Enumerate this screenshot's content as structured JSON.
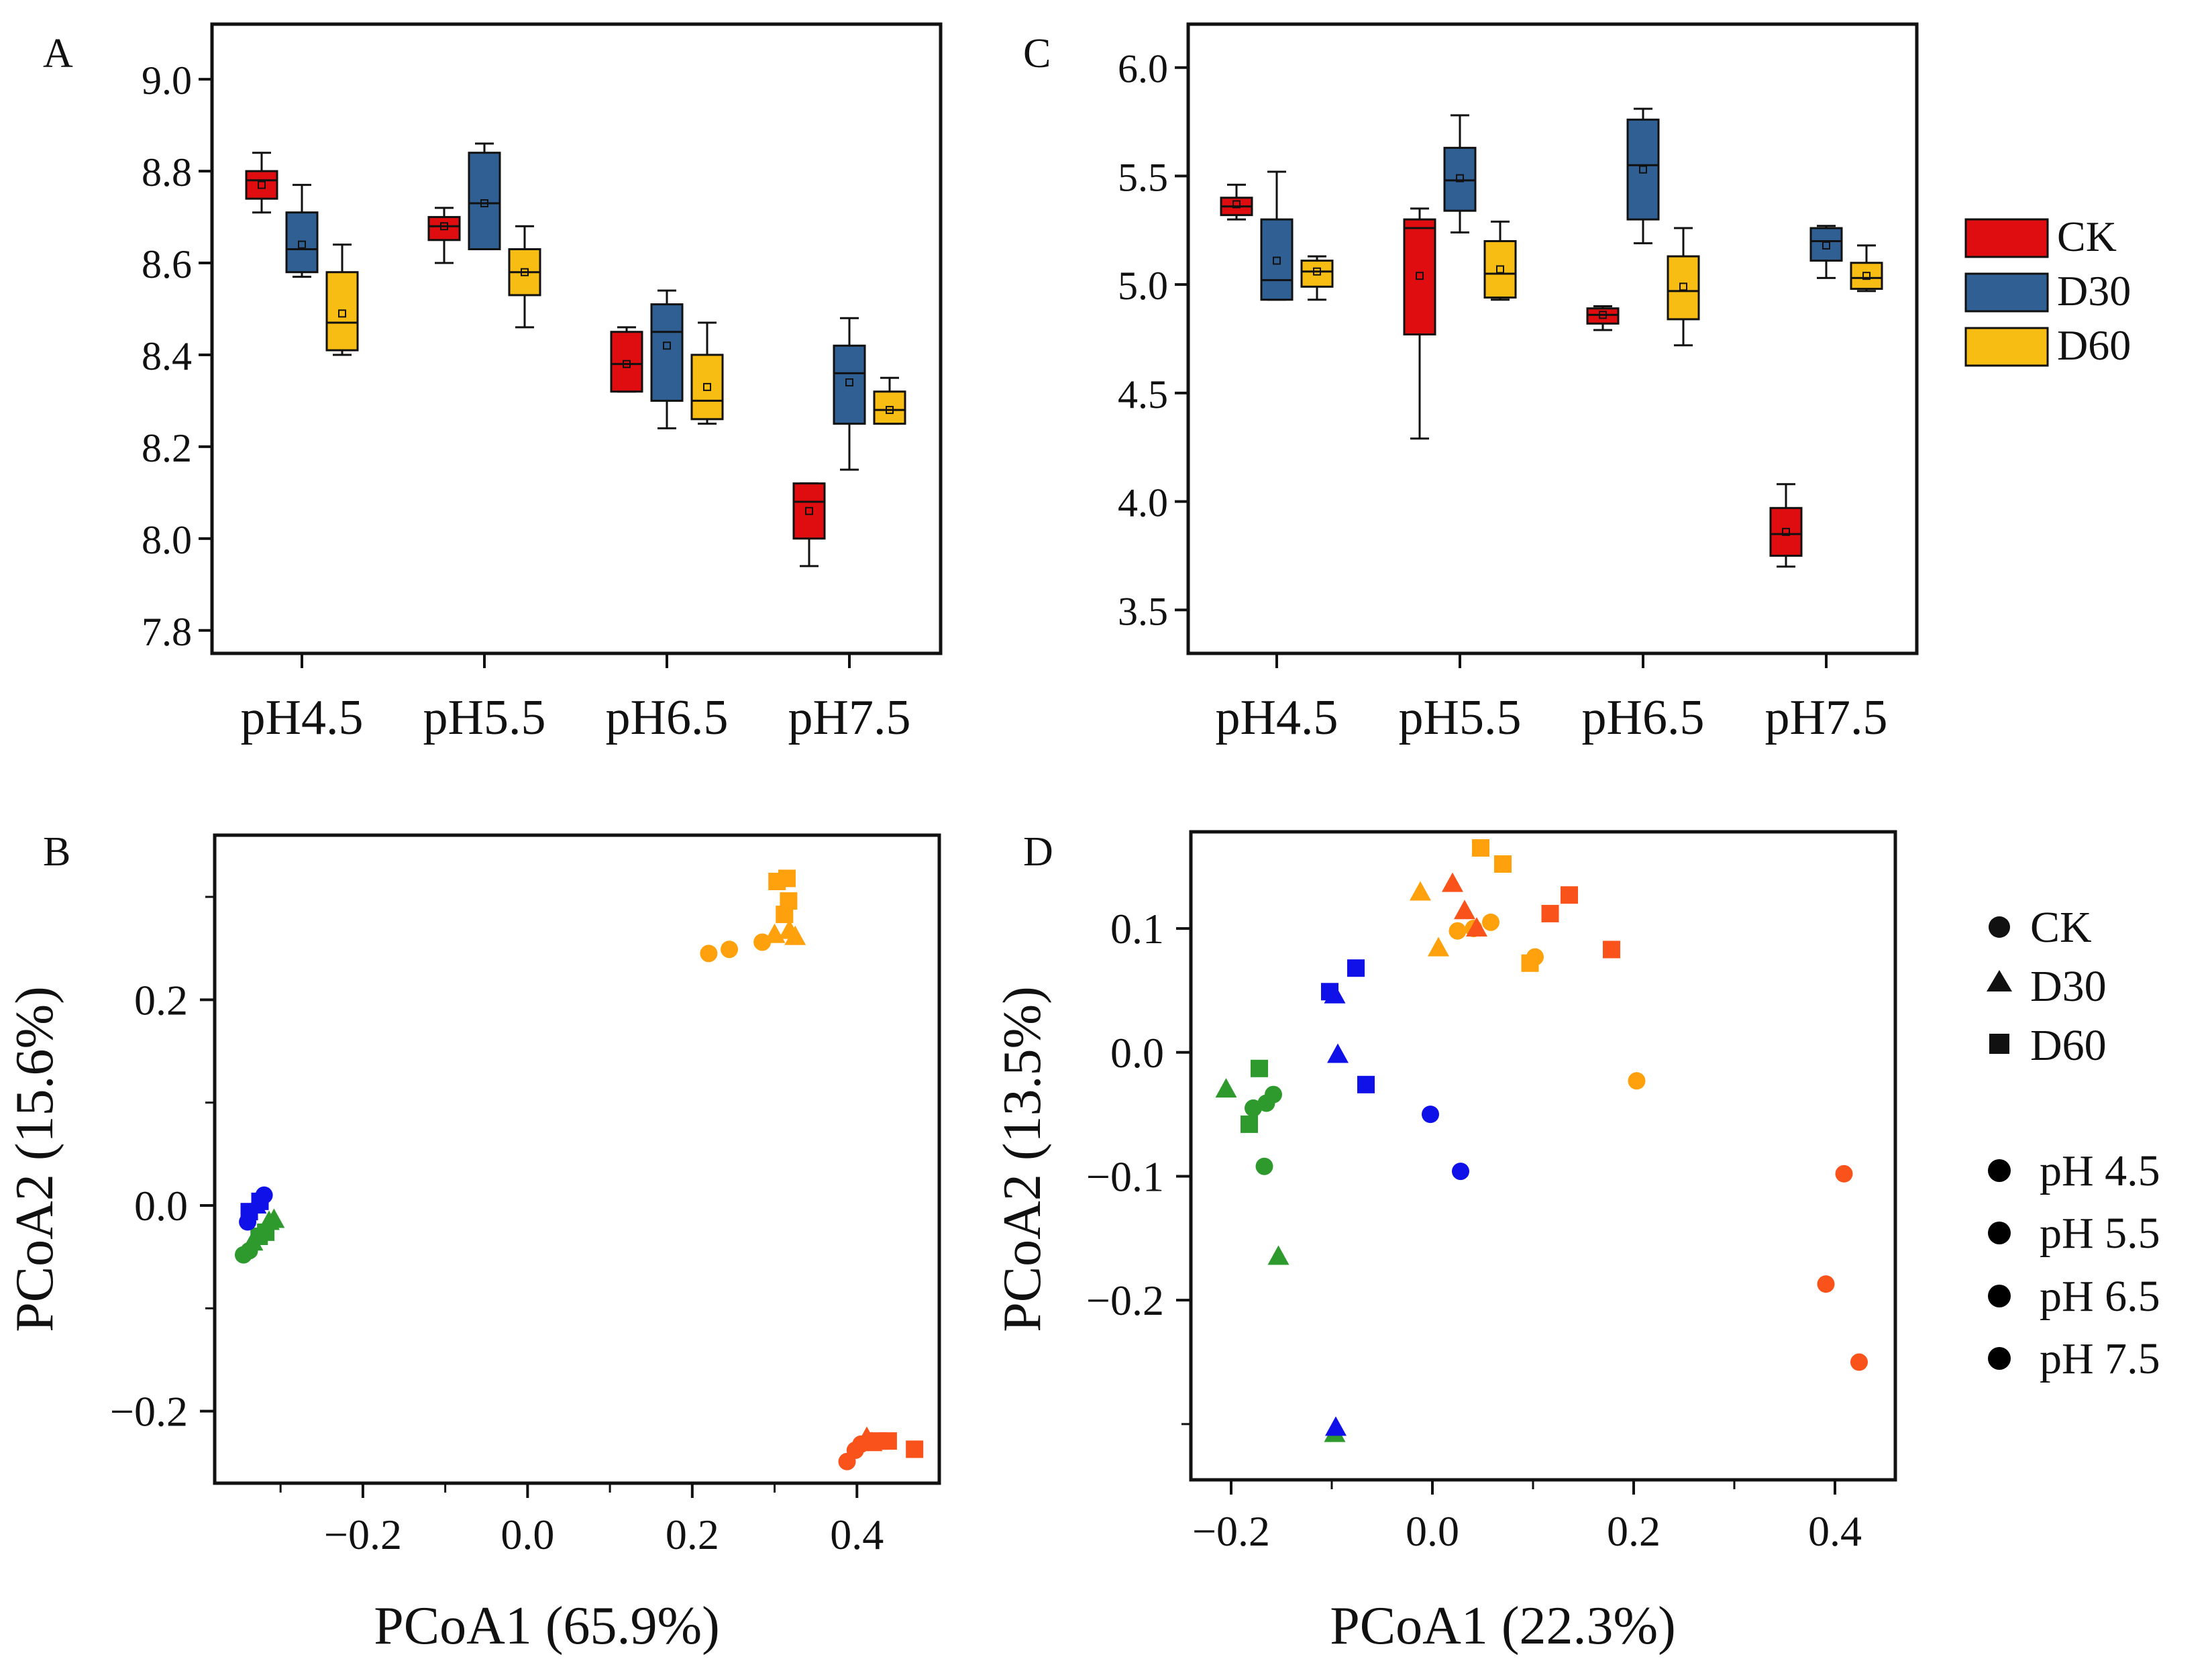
{
  "colors": {
    "CK": "#e00d10",
    "D30": "#2f5f93",
    "D60": "#f8bd12",
    "pH 4.5": "#2e9a2e",
    "pH 5.5": "#1010e8",
    "pH 6.5": "#ffa10d",
    "pH 7.5": "#f9521a"
  },
  "chart_data": [
    {
      "id": "A",
      "panel_label": "A",
      "type": "box",
      "categories": [
        "pH4.5",
        "pH5.5",
        "pH6.5",
        "pH7.5"
      ],
      "groups": [
        "CK",
        "D30",
        "D60"
      ],
      "ylim": [
        7.75,
        9.12
      ],
      "yticks": [
        "7.8",
        "8.0",
        "8.2",
        "8.4",
        "8.6",
        "8.8",
        "9.0"
      ],
      "series": [
        {
          "name": "CK",
          "boxes": [
            {
              "min": 8.71,
              "q1": 8.74,
              "median": 8.78,
              "q3": 8.8,
              "max": 8.84,
              "mean": 8.77
            },
            {
              "min": 8.6,
              "q1": 8.65,
              "median": 8.68,
              "q3": 8.7,
              "max": 8.72,
              "mean": 8.68
            },
            {
              "min": 8.32,
              "q1": 8.32,
              "median": 8.38,
              "q3": 8.45,
              "max": 8.46,
              "mean": 8.38
            },
            {
              "min": 7.94,
              "q1": 8.0,
              "median": 8.08,
              "q3": 8.12,
              "max": 8.12,
              "mean": 8.06
            }
          ]
        },
        {
          "name": "D30",
          "boxes": [
            {
              "min": 8.57,
              "q1": 8.58,
              "median": 8.63,
              "q3": 8.71,
              "max": 8.77,
              "mean": 8.64
            },
            {
              "min": 8.63,
              "q1": 8.63,
              "median": 8.73,
              "q3": 8.84,
              "max": 8.86,
              "mean": 8.73
            },
            {
              "min": 8.24,
              "q1": 8.3,
              "median": 8.45,
              "q3": 8.51,
              "max": 8.54,
              "mean": 8.42
            },
            {
              "min": 8.15,
              "q1": 8.25,
              "median": 8.36,
              "q3": 8.42,
              "max": 8.48,
              "mean": 8.34
            }
          ]
        },
        {
          "name": "D60",
          "boxes": [
            {
              "min": 8.4,
              "q1": 8.41,
              "median": 8.47,
              "q3": 8.58,
              "max": 8.64,
              "mean": 8.49
            },
            {
              "min": 8.46,
              "q1": 8.53,
              "median": 8.58,
              "q3": 8.63,
              "max": 8.68,
              "mean": 8.58
            },
            {
              "min": 8.25,
              "q1": 8.26,
              "median": 8.3,
              "q3": 8.4,
              "max": 8.47,
              "mean": 8.33
            },
            {
              "min": 8.25,
              "q1": 8.25,
              "median": 8.28,
              "q3": 8.32,
              "max": 8.35,
              "mean": 8.28
            }
          ]
        }
      ]
    },
    {
      "id": "C",
      "panel_label": "C",
      "type": "box",
      "categories": [
        "pH4.5",
        "pH5.5",
        "pH6.5",
        "pH7.5"
      ],
      "groups": [
        "CK",
        "D30",
        "D60"
      ],
      "ylim": [
        3.3,
        6.2
      ],
      "yticks": [
        "3.5",
        "4.0",
        "4.5",
        "5.0",
        "5.5",
        "6.0"
      ],
      "series": [
        {
          "name": "CK",
          "boxes": [
            {
              "min": 5.3,
              "q1": 5.32,
              "median": 5.36,
              "q3": 5.4,
              "max": 5.46,
              "mean": 5.37
            },
            {
              "min": 4.29,
              "q1": 4.77,
              "median": 5.26,
              "q3": 5.3,
              "max": 5.35,
              "mean": 5.04
            },
            {
              "min": 4.79,
              "q1": 4.82,
              "median": 4.86,
              "q3": 4.89,
              "max": 4.9,
              "mean": 4.86
            },
            {
              "min": 3.7,
              "q1": 3.75,
              "median": 3.85,
              "q3": 3.97,
              "max": 4.08,
              "mean": 3.86
            }
          ]
        },
        {
          "name": "D30",
          "boxes": [
            {
              "min": 4.93,
              "q1": 4.93,
              "median": 5.02,
              "q3": 5.3,
              "max": 5.52,
              "mean": 5.11
            },
            {
              "min": 5.24,
              "q1": 5.34,
              "median": 5.48,
              "q3": 5.63,
              "max": 5.78,
              "mean": 5.49
            },
            {
              "min": 5.19,
              "q1": 5.3,
              "median": 5.55,
              "q3": 5.76,
              "max": 5.81,
              "mean": 5.53
            },
            {
              "min": 5.03,
              "q1": 5.11,
              "median": 5.2,
              "q3": 5.26,
              "max": 5.27,
              "mean": 5.18
            }
          ]
        },
        {
          "name": "D60",
          "boxes": [
            {
              "min": 4.93,
              "q1": 4.99,
              "median": 5.06,
              "q3": 5.11,
              "max": 5.13,
              "mean": 5.06
            },
            {
              "min": 4.93,
              "q1": 4.94,
              "median": 5.05,
              "q3": 5.2,
              "max": 5.29,
              "mean": 5.07
            },
            {
              "min": 4.72,
              "q1": 4.84,
              "median": 4.97,
              "q3": 5.13,
              "max": 5.26,
              "mean": 4.99
            },
            {
              "min": 4.97,
              "q1": 4.98,
              "median": 5.03,
              "q3": 5.1,
              "max": 5.18,
              "mean": 5.04
            }
          ]
        }
      ]
    },
    {
      "id": "B",
      "panel_label": "B",
      "type": "scatter",
      "xlabel": "PCoA1 (65.9%)",
      "ylabel": "PCoA2 (15.6%)",
      "xlim": [
        -0.38,
        0.5
      ],
      "ylim": [
        -0.27,
        0.36
      ],
      "xticks": [
        "-0.2",
        "0.0",
        "0.2",
        "0.4"
      ],
      "xtick_values": [
        -0.2,
        0.0,
        0.2,
        0.4
      ],
      "xminor": [
        -0.3,
        -0.1,
        0.1,
        0.3
      ],
      "yticks": [
        "-0.2",
        "0.0",
        "0.2"
      ],
      "ytick_values": [
        -0.2,
        0.0,
        0.2
      ],
      "yminor": [
        -0.1,
        0.1,
        0.3
      ],
      "points": [
        {
          "x": -0.345,
          "y": -0.048,
          "shape": "circle",
          "group": "pH 4.5"
        },
        {
          "x": -0.338,
          "y": -0.044,
          "shape": "circle",
          "group": "pH 4.5"
        },
        {
          "x": -0.334,
          "y": -0.036,
          "shape": "triangle",
          "group": "pH 4.5"
        },
        {
          "x": -0.326,
          "y": -0.03,
          "shape": "square",
          "group": "pH 4.5"
        },
        {
          "x": -0.318,
          "y": -0.026,
          "shape": "square",
          "group": "pH 4.5"
        },
        {
          "x": -0.314,
          "y": -0.016,
          "shape": "triangle",
          "group": "pH 4.5"
        },
        {
          "x": -0.308,
          "y": -0.014,
          "shape": "triangle",
          "group": "pH 4.5"
        },
        {
          "x": -0.34,
          "y": -0.016,
          "shape": "circle",
          "group": "pH 5.5"
        },
        {
          "x": -0.338,
          "y": -0.006,
          "shape": "square",
          "group": "pH 5.5"
        },
        {
          "x": -0.33,
          "y": 0.0,
          "shape": "triangle",
          "group": "pH 5.5"
        },
        {
          "x": -0.325,
          "y": 0.004,
          "shape": "square",
          "group": "pH 5.5"
        },
        {
          "x": -0.32,
          "y": 0.01,
          "shape": "circle",
          "group": "pH 5.5"
        },
        {
          "x": 0.22,
          "y": 0.245,
          "shape": "circle",
          "group": "pH 6.5"
        },
        {
          "x": 0.245,
          "y": 0.249,
          "shape": "circle",
          "group": "pH 6.5"
        },
        {
          "x": 0.285,
          "y": 0.256,
          "shape": "circle",
          "group": "pH 6.5"
        },
        {
          "x": 0.3,
          "y": 0.263,
          "shape": "triangle",
          "group": "pH 6.5"
        },
        {
          "x": 0.318,
          "y": 0.267,
          "shape": "triangle",
          "group": "pH 6.5"
        },
        {
          "x": 0.325,
          "y": 0.261,
          "shape": "triangle",
          "group": "pH 6.5"
        },
        {
          "x": 0.312,
          "y": 0.283,
          "shape": "square",
          "group": "pH 6.5"
        },
        {
          "x": 0.317,
          "y": 0.296,
          "shape": "square",
          "group": "pH 6.5"
        },
        {
          "x": 0.303,
          "y": 0.315,
          "shape": "square",
          "group": "pH 6.5"
        },
        {
          "x": 0.315,
          "y": 0.318,
          "shape": "square",
          "group": "pH 6.5"
        },
        {
          "x": 0.388,
          "y": -0.249,
          "shape": "circle",
          "group": "pH 7.5"
        },
        {
          "x": 0.398,
          "y": -0.238,
          "shape": "circle",
          "group": "pH 7.5"
        },
        {
          "x": 0.405,
          "y": -0.232,
          "shape": "circle",
          "group": "pH 7.5"
        },
        {
          "x": 0.412,
          "y": -0.226,
          "shape": "triangle",
          "group": "pH 7.5"
        },
        {
          "x": 0.418,
          "y": -0.231,
          "shape": "triangle",
          "group": "pH 7.5"
        },
        {
          "x": 0.426,
          "y": -0.229,
          "shape": "square",
          "group": "pH 7.5"
        },
        {
          "x": 0.438,
          "y": -0.229,
          "shape": "square",
          "group": "pH 7.5"
        },
        {
          "x": 0.47,
          "y": -0.237,
          "shape": "square",
          "group": "pH 7.5"
        }
      ]
    },
    {
      "id": "D",
      "panel_label": "D",
      "type": "scatter",
      "xlabel": "PCoA1 (22.3%)",
      "ylabel": "PCoA2 (13.5%)",
      "xlim": [
        -0.24,
        0.46
      ],
      "ylim": [
        -0.345,
        0.178
      ],
      "xticks": [
        "-0.2",
        "0.0",
        "0.2",
        "0.4"
      ],
      "xtick_values": [
        -0.2,
        0.0,
        0.2,
        0.4
      ],
      "xminor": [
        -0.1,
        0.1,
        0.3
      ],
      "yticks": [
        "-0.2",
        "-0.1",
        "0.0",
        "0.1"
      ],
      "ytick_values": [
        -0.2,
        -0.1,
        0.0,
        0.1
      ],
      "yminor": [
        -0.3
      ],
      "points": [
        {
          "x": -0.205,
          "y": -0.03,
          "shape": "triangle",
          "group": "pH 4.5"
        },
        {
          "x": -0.182,
          "y": -0.058,
          "shape": "square",
          "group": "pH 4.5"
        },
        {
          "x": -0.178,
          "y": -0.045,
          "shape": "circle",
          "group": "pH 4.5"
        },
        {
          "x": -0.172,
          "y": -0.013,
          "shape": "square",
          "group": "pH 4.5"
        },
        {
          "x": -0.167,
          "y": -0.092,
          "shape": "circle",
          "group": "pH 4.5"
        },
        {
          "x": -0.165,
          "y": -0.041,
          "shape": "circle",
          "group": "pH 4.5"
        },
        {
          "x": -0.158,
          "y": -0.034,
          "shape": "circle",
          "group": "pH 4.5"
        },
        {
          "x": -0.153,
          "y": -0.165,
          "shape": "triangle",
          "group": "pH 4.5"
        },
        {
          "x": -0.097,
          "y": -0.308,
          "shape": "triangle",
          "group": "pH 4.5"
        },
        {
          "x": -0.096,
          "y": -0.303,
          "shape": "triangle",
          "group": "pH 5.5"
        },
        {
          "x": -0.102,
          "y": 0.049,
          "shape": "square",
          "group": "pH 5.5"
        },
        {
          "x": -0.097,
          "y": 0.046,
          "shape": "triangle",
          "group": "pH 5.5"
        },
        {
          "x": -0.094,
          "y": -0.002,
          "shape": "triangle",
          "group": "pH 5.5"
        },
        {
          "x": -0.076,
          "y": 0.068,
          "shape": "square",
          "group": "pH 5.5"
        },
        {
          "x": -0.066,
          "y": -0.026,
          "shape": "square",
          "group": "pH 5.5"
        },
        {
          "x": -0.002,
          "y": -0.05,
          "shape": "circle",
          "group": "pH 5.5"
        },
        {
          "x": 0.028,
          "y": -0.096,
          "shape": "circle",
          "group": "pH 5.5"
        },
        {
          "x": -0.012,
          "y": 0.129,
          "shape": "triangle",
          "group": "pH 6.5"
        },
        {
          "x": 0.006,
          "y": 0.084,
          "shape": "triangle",
          "group": "pH 6.5"
        },
        {
          "x": 0.025,
          "y": 0.098,
          "shape": "circle",
          "group": "pH 6.5"
        },
        {
          "x": 0.041,
          "y": 0.1,
          "shape": "circle",
          "group": "pH 6.5"
        },
        {
          "x": 0.058,
          "y": 0.105,
          "shape": "circle",
          "group": "pH 6.5"
        },
        {
          "x": 0.048,
          "y": 0.165,
          "shape": "square",
          "group": "pH 6.5"
        },
        {
          "x": 0.07,
          "y": 0.152,
          "shape": "square",
          "group": "pH 6.5"
        },
        {
          "x": 0.097,
          "y": 0.072,
          "shape": "square",
          "group": "pH 6.5"
        },
        {
          "x": 0.102,
          "y": 0.077,
          "shape": "circle",
          "group": "pH 6.5"
        },
        {
          "x": 0.203,
          "y": -0.023,
          "shape": "circle",
          "group": "pH 6.5"
        },
        {
          "x": 0.02,
          "y": 0.136,
          "shape": "triangle",
          "group": "pH 7.5"
        },
        {
          "x": 0.032,
          "y": 0.114,
          "shape": "triangle",
          "group": "pH 7.5"
        },
        {
          "x": 0.044,
          "y": 0.1,
          "shape": "triangle",
          "group": "pH 7.5"
        },
        {
          "x": 0.117,
          "y": 0.112,
          "shape": "square",
          "group": "pH 7.5"
        },
        {
          "x": 0.136,
          "y": 0.127,
          "shape": "square",
          "group": "pH 7.5"
        },
        {
          "x": 0.178,
          "y": 0.083,
          "shape": "square",
          "group": "pH 7.5"
        },
        {
          "x": 0.391,
          "y": -0.187,
          "shape": "circle",
          "group": "pH 7.5"
        },
        {
          "x": 0.409,
          "y": -0.098,
          "shape": "circle",
          "group": "pH 7.5"
        },
        {
          "x": 0.424,
          "y": -0.25,
          "shape": "circle",
          "group": "pH 7.5"
        }
      ]
    }
  ],
  "legends": {
    "treatment": {
      "items": [
        "CK",
        "D30",
        "D60"
      ]
    },
    "shape": {
      "items": [
        {
          "label": "CK",
          "shape": "circle"
        },
        {
          "label": "D30",
          "shape": "triangle"
        },
        {
          "label": "D60",
          "shape": "square"
        }
      ]
    },
    "ph": {
      "items": [
        "pH 4.5",
        "pH 5.5",
        "pH 6.5",
        "pH 7.5"
      ]
    }
  }
}
